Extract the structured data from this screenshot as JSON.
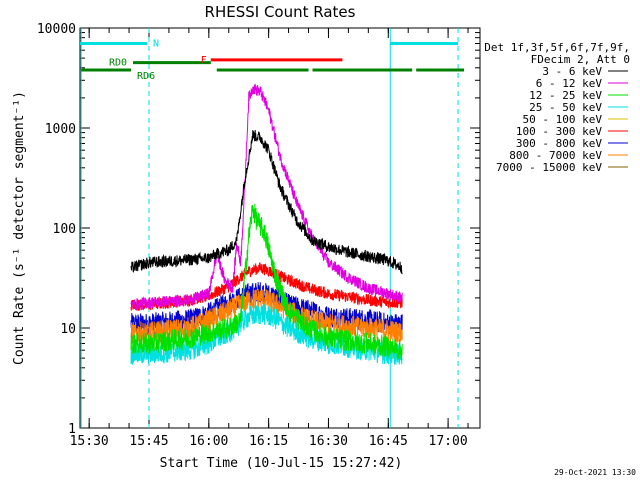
{
  "chart_data": {
    "type": "line",
    "title": "RHESSI Count Rates",
    "xlabel": "Start Time (10-Jul-15 15:27:42)",
    "ylabel": "Count Rate (s⁻¹ detector segment⁻¹)",
    "y_scale": "log",
    "ylim": [
      1,
      10000
    ],
    "xlim": [
      "15:27:42",
      "17:08:00"
    ],
    "x_ticks": [
      "15:30",
      "15:45",
      "16:00",
      "16:15",
      "16:30",
      "16:45",
      "17:00"
    ],
    "y_ticks": [
      "1",
      "10",
      "100",
      "1000",
      "10000"
    ],
    "legend_header": [
      "Det 1f,3f,5f,6f,7f,9f,",
      "FDecim 2, Att 0"
    ],
    "legend_position": "outside-right",
    "footer_date": "29-Oct-2021 13:30",
    "data_start": "15:40:30",
    "data_end": "16:48:30",
    "series": [
      {
        "name": "3 - 6 keV",
        "color": "#000000",
        "x": [
          "15:40:30",
          "15:45:00",
          "15:55:00",
          "16:00:00",
          "16:02:00",
          "16:05:00",
          "16:07:00",
          "16:09:00",
          "16:11:00",
          "16:13:00",
          "16:15:00",
          "16:18:00",
          "16:22:00",
          "16:26:00",
          "16:30:00",
          "16:35:00",
          "16:40:00",
          "16:45:00",
          "16:48:30"
        ],
        "y": [
          40,
          45,
          48,
          50,
          55,
          60,
          75,
          300,
          850,
          800,
          600,
          250,
          120,
          75,
          65,
          57,
          52,
          47,
          40
        ]
      },
      {
        "name": "6 - 12 keV",
        "color": "#e000e0",
        "x": [
          "15:40:30",
          "15:45:00",
          "15:55:00",
          "16:00:00",
          "16:02:00",
          "16:04:00",
          "16:06:00",
          "16:07:00",
          "16:08:00",
          "16:09:00",
          "16:10:00",
          "16:11:00",
          "16:13:00",
          "16:15:00",
          "16:18:00",
          "16:22:00",
          "16:26:00",
          "16:30:00",
          "16:35:00",
          "16:40:00",
          "16:45:00",
          "16:48:30"
        ],
        "y": [
          17,
          18,
          19,
          22,
          55,
          30,
          25,
          70,
          45,
          250,
          2000,
          2500,
          2300,
          1500,
          500,
          180,
          80,
          45,
          32,
          25,
          22,
          20
        ]
      },
      {
        "name": "12 - 25 keV",
        "color": "#00e000",
        "x": [
          "15:40:30",
          "15:45:00",
          "15:55:00",
          "16:00:00",
          "16:05:00",
          "16:08:00",
          "16:10:00",
          "16:11:00",
          "16:12:00",
          "16:14:00",
          "16:17:00",
          "16:20:00",
          "16:25:00",
          "16:30:00",
          "16:40:00",
          "16:45:00",
          "16:48:30"
        ],
        "y": [
          7,
          7,
          8,
          9,
          10,
          12,
          80,
          160,
          120,
          90,
          30,
          15,
          10,
          8,
          7,
          6.5,
          6
        ]
      },
      {
        "name": "25 - 50 keV",
        "color": "#00e0e0",
        "x": [
          "15:40:30",
          "15:45:00",
          "15:55:00",
          "16:00:00",
          "16:05:00",
          "16:10:00",
          "16:13:00",
          "16:16:00",
          "16:20:00",
          "16:25:00",
          "16:30:00",
          "16:40:00",
          "16:45:00",
          "16:48:30"
        ],
        "y": [
          5.5,
          5.5,
          6,
          7,
          9,
          13,
          14,
          13,
          10,
          8,
          7,
          6,
          5.5,
          5.5
        ]
      },
      {
        "name": "50 - 100 keV",
        "color": "#e0c000",
        "x": [],
        "y": []
      },
      {
        "name": "100 - 300 keV",
        "color": "#ff0000",
        "x": [
          "15:40:30",
          "15:45:00",
          "15:55:00",
          "16:00:00",
          "16:05:00",
          "16:10:00",
          "16:13:00",
          "16:16:00",
          "16:20:00",
          "16:25:00",
          "16:30:00",
          "16:40:00",
          "16:45:00",
          "16:48:30"
        ],
        "y": [
          17,
          17,
          19,
          21,
          26,
          37,
          40,
          36,
          30,
          25,
          22,
          19,
          18,
          18
        ]
      },
      {
        "name": "300 - 800 keV",
        "color": "#0000d0",
        "x": [
          "15:40:30",
          "15:45:00",
          "15:55:00",
          "16:00:00",
          "16:05:00",
          "16:10:00",
          "16:13:00",
          "16:16:00",
          "16:20:00",
          "16:25:00",
          "16:30:00",
          "16:40:00",
          "16:45:00",
          "16:48:30"
        ],
        "y": [
          11,
          11,
          12,
          14,
          18,
          22,
          23,
          21,
          17,
          15,
          13,
          12,
          11,
          11
        ]
      },
      {
        "name": "800 - 7000 keV",
        "color": "#ff8000",
        "x": [
          "15:40:30",
          "15:45:00",
          "15:55:00",
          "16:00:00",
          "16:05:00",
          "16:10:00",
          "16:13:00",
          "16:16:00",
          "16:20:00",
          "16:25:00",
          "16:30:00",
          "16:40:00",
          "16:45:00",
          "16:48:30"
        ],
        "y": [
          9,
          9,
          10,
          12,
          15,
          19,
          20,
          18,
          15,
          12,
          11,
          10,
          9.5,
          9
        ]
      },
      {
        "name": "7000 - 15000 keV",
        "color": "#806000",
        "x": [],
        "y": []
      }
    ],
    "spacecraft_flags": [
      {
        "label": "N",
        "color": "#00e0e0",
        "level": 7000,
        "segments": [
          [
            "15:27:42",
            "15:44:30"
          ],
          [
            "16:45:30",
            "17:02:30"
          ]
        ]
      },
      {
        "label": "F",
        "color": "#ff0000",
        "level": 4800,
        "segments": [
          [
            "16:00:30",
            "16:33:30"
          ]
        ]
      },
      {
        "label": "RD0",
        "color": "#008000",
        "level": 4500,
        "segments": [
          [
            "15:41:00",
            "16:00:30"
          ]
        ]
      },
      {
        "label": "RD6",
        "color": "#008000",
        "level": 3800,
        "segments": [
          [
            "15:28:00",
            "15:40:30"
          ],
          [
            "16:02:00",
            "16:25:00"
          ],
          [
            "16:26:00",
            "16:51:00"
          ],
          [
            "16:52:00",
            "17:04:00"
          ]
        ]
      }
    ],
    "vertical_markers": [
      {
        "time": "15:28:00",
        "style": "solid",
        "color": "#00e0e0"
      },
      {
        "time": "15:45:00",
        "style": "dashed",
        "color": "#00e0e0"
      },
      {
        "time": "16:45:30",
        "style": "solid",
        "color": "#00e0e0"
      },
      {
        "time": "17:02:30",
        "style": "dashed",
        "color": "#00e0e0"
      }
    ]
  }
}
